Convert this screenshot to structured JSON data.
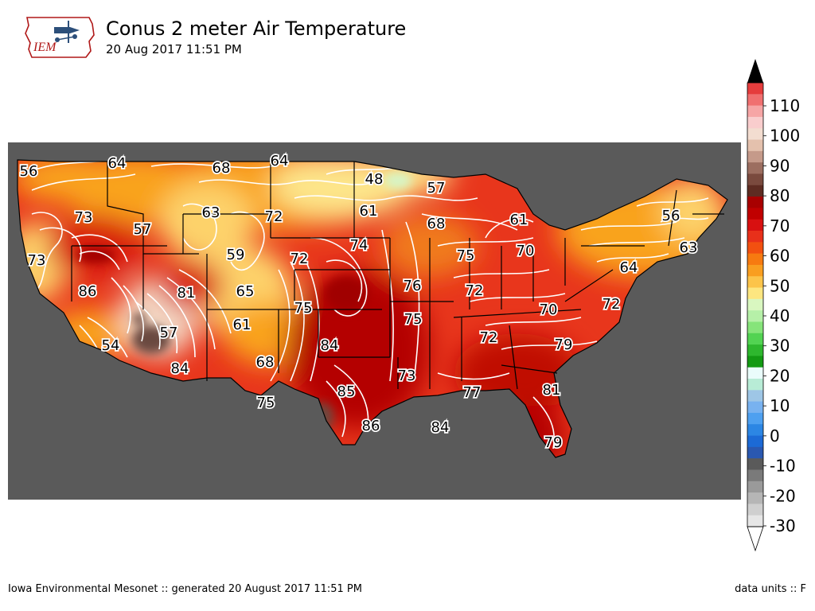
{
  "header": {
    "title": "Conus 2 meter Air Temperature",
    "subtitle": "20 Aug 2017 11:51 PM",
    "logo_text": "IEM"
  },
  "footer": {
    "left": "Iowa Environmental Mesonet :: generated 20 August 2017 11:51 PM",
    "right": "data units :: F"
  },
  "colorbar": {
    "ticks": [
      "110",
      "100",
      "90",
      "80",
      "70",
      "60",
      "50",
      "40",
      "30",
      "20",
      "10",
      "0",
      "-10",
      "-20",
      "-30"
    ]
  },
  "map": {
    "background_color": "#5a5a5a",
    "labels": [
      {
        "id": "nw-wa",
        "value": "56"
      },
      {
        "id": "n-id",
        "value": "64"
      },
      {
        "id": "n-mt",
        "value": "68"
      },
      {
        "id": "n-nd",
        "value": "64"
      },
      {
        "id": "n-mn",
        "value": "48"
      },
      {
        "id": "n-wi",
        "value": "57"
      },
      {
        "id": "or",
        "value": "73"
      },
      {
        "id": "id",
        "value": "57"
      },
      {
        "id": "wy",
        "value": "63"
      },
      {
        "id": "sd",
        "value": "72"
      },
      {
        "id": "ia-n",
        "value": "61"
      },
      {
        "id": "wi-s",
        "value": "68"
      },
      {
        "id": "mi",
        "value": "61"
      },
      {
        "id": "vt",
        "value": "56"
      },
      {
        "id": "ca-coast",
        "value": "73"
      },
      {
        "id": "co-n",
        "value": "59"
      },
      {
        "id": "ne",
        "value": "72"
      },
      {
        "id": "ia",
        "value": "74"
      },
      {
        "id": "il-n",
        "value": "75"
      },
      {
        "id": "oh",
        "value": "70"
      },
      {
        "id": "ma",
        "value": "63"
      },
      {
        "id": "nj",
        "value": "64"
      },
      {
        "id": "nv",
        "value": "86"
      },
      {
        "id": "ut",
        "value": "81"
      },
      {
        "id": "co-e",
        "value": "65"
      },
      {
        "id": "mo-w",
        "value": "76"
      },
      {
        "id": "il-s",
        "value": "72"
      },
      {
        "id": "ks",
        "value": "75"
      },
      {
        "id": "az-n",
        "value": "57"
      },
      {
        "id": "nm",
        "value": "61"
      },
      {
        "id": "ar",
        "value": "75"
      },
      {
        "id": "wv",
        "value": "70"
      },
      {
        "id": "va",
        "value": "72"
      },
      {
        "id": "ca-s",
        "value": "54"
      },
      {
        "id": "az-s",
        "value": "84"
      },
      {
        "id": "tx-panh",
        "value": "68"
      },
      {
        "id": "ok",
        "value": "84"
      },
      {
        "id": "tn",
        "value": "72"
      },
      {
        "id": "sc",
        "value": "79"
      },
      {
        "id": "la",
        "value": "73"
      },
      {
        "id": "tx-c",
        "value": "85"
      },
      {
        "id": "ms",
        "value": "77"
      },
      {
        "id": "ga",
        "value": "81"
      },
      {
        "id": "tx-w",
        "value": "75"
      },
      {
        "id": "tx-s",
        "value": "86"
      },
      {
        "id": "gulf",
        "value": "84"
      },
      {
        "id": "fl",
        "value": "79"
      }
    ]
  }
}
